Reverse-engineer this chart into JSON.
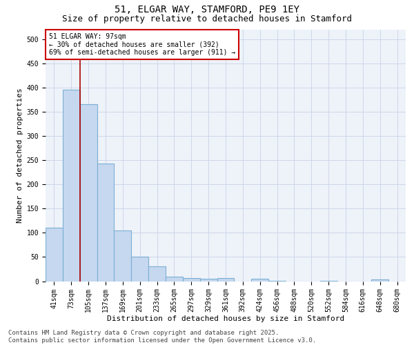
{
  "title": "51, ELGAR WAY, STAMFORD, PE9 1EY",
  "subtitle": "Size of property relative to detached houses in Stamford",
  "xlabel": "Distribution of detached houses by size in Stamford",
  "ylabel": "Number of detached properties",
  "categories": [
    "41sqm",
    "73sqm",
    "105sqm",
    "137sqm",
    "169sqm",
    "201sqm",
    "233sqm",
    "265sqm",
    "297sqm",
    "329sqm",
    "361sqm",
    "392sqm",
    "424sqm",
    "456sqm",
    "488sqm",
    "520sqm",
    "552sqm",
    "584sqm",
    "616sqm",
    "648sqm",
    "680sqm"
  ],
  "values": [
    110,
    395,
    365,
    243,
    105,
    50,
    30,
    9,
    7,
    5,
    6,
    0,
    5,
    1,
    0,
    0,
    1,
    0,
    0,
    3,
    0
  ],
  "bar_color": "#c5d8ef",
  "bar_edge_color": "#7bafd4",
  "bar_linewidth": 0.8,
  "grid_color": "#c8d4e8",
  "background_color": "#eef2f9",
  "vline_color": "#aa0000",
  "vline_x": 1.5,
  "annotation_line1": "51 ELGAR WAY: 97sqm",
  "annotation_line2": "← 30% of detached houses are smaller (392)",
  "annotation_line3": "69% of semi-detached houses are larger (911) →",
  "annotation_box_color": "#cc0000",
  "ylim": [
    0,
    520
  ],
  "yticks": [
    0,
    50,
    100,
    150,
    200,
    250,
    300,
    350,
    400,
    450,
    500
  ],
  "footer_line1": "Contains HM Land Registry data © Crown copyright and database right 2025.",
  "footer_line2": "Contains public sector information licensed under the Open Government Licence v3.0.",
  "title_fontsize": 10,
  "subtitle_fontsize": 9,
  "axis_label_fontsize": 8,
  "tick_fontsize": 7,
  "annotation_fontsize": 7,
  "footer_fontsize": 6.5
}
